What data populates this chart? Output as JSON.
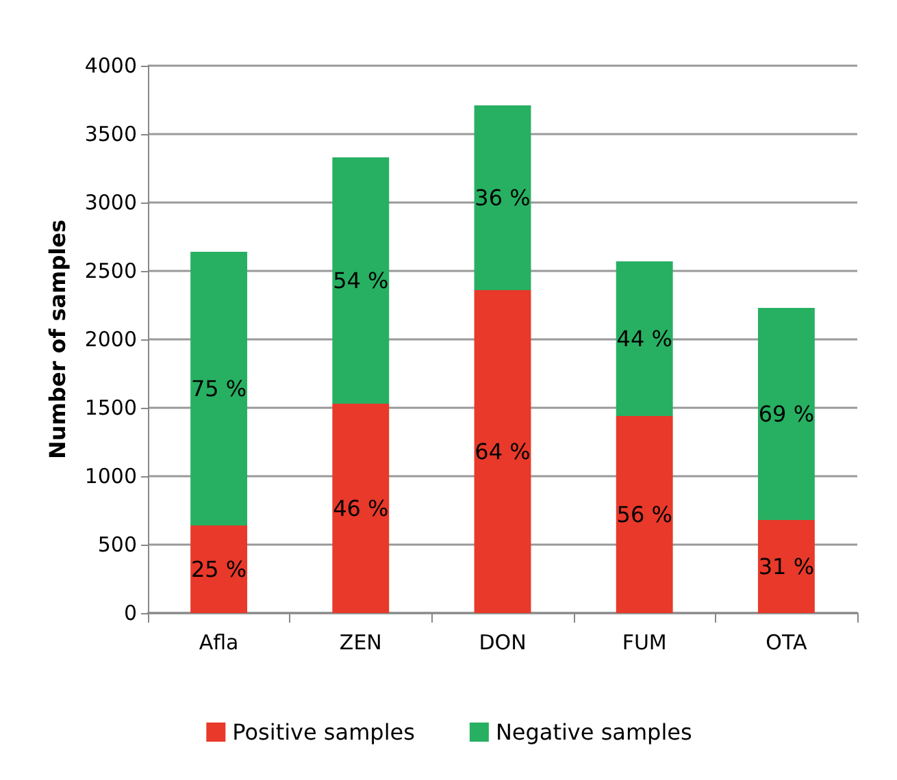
{
  "chart_data": {
    "type": "bar",
    "stacked": true,
    "ylabel": "Number of samples",
    "categories": [
      "Afla",
      "ZEN",
      "DON",
      "FUM",
      "OTA"
    ],
    "series": [
      {
        "name": "Positive samples",
        "color": "#e8392a",
        "values": [
          640,
          1530,
          2360,
          1440,
          680
        ]
      },
      {
        "name": "Negative samples",
        "color": "#27b062",
        "values": [
          2000,
          1800,
          1350,
          1130,
          1550
        ]
      }
    ],
    "annotations": [
      "25 %",
      "46 %",
      "64 %",
      "56 %",
      "31 %",
      "75 %",
      "54 %",
      "36 %",
      "44 %",
      "69 %"
    ],
    "ylim": [
      0,
      4000
    ],
    "yticks": [
      0,
      500,
      1000,
      1500,
      2000,
      2500,
      3000,
      3500,
      4000
    ],
    "grid": "y",
    "legend": "bottom"
  }
}
